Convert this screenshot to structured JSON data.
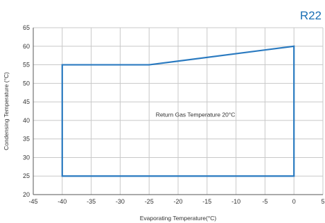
{
  "chart_data": {
    "type": "line",
    "badge": "R22",
    "title": "",
    "xlabel": "Evaporating Temperature(°C)",
    "ylabel": "Condensing Temperature (°C)",
    "xlim": [
      -45,
      5
    ],
    "ylim": [
      20,
      65
    ],
    "x_ticks": [
      -45,
      -40,
      -35,
      -30,
      -25,
      -20,
      -15,
      -10,
      -5,
      0,
      5
    ],
    "y_ticks": [
      20,
      25,
      30,
      35,
      40,
      45,
      50,
      55,
      60,
      65
    ],
    "grid": true,
    "series": [
      {
        "color": "#2a7ac0",
        "closed": true,
        "x": [
          -40,
          -25,
          0,
          0,
          -40
        ],
        "y": [
          55,
          55,
          60,
          25,
          25
        ]
      }
    ],
    "annotations": [
      {
        "text": "Return Gas Temperature 20°C",
        "x": -17,
        "y": 41
      }
    ]
  }
}
